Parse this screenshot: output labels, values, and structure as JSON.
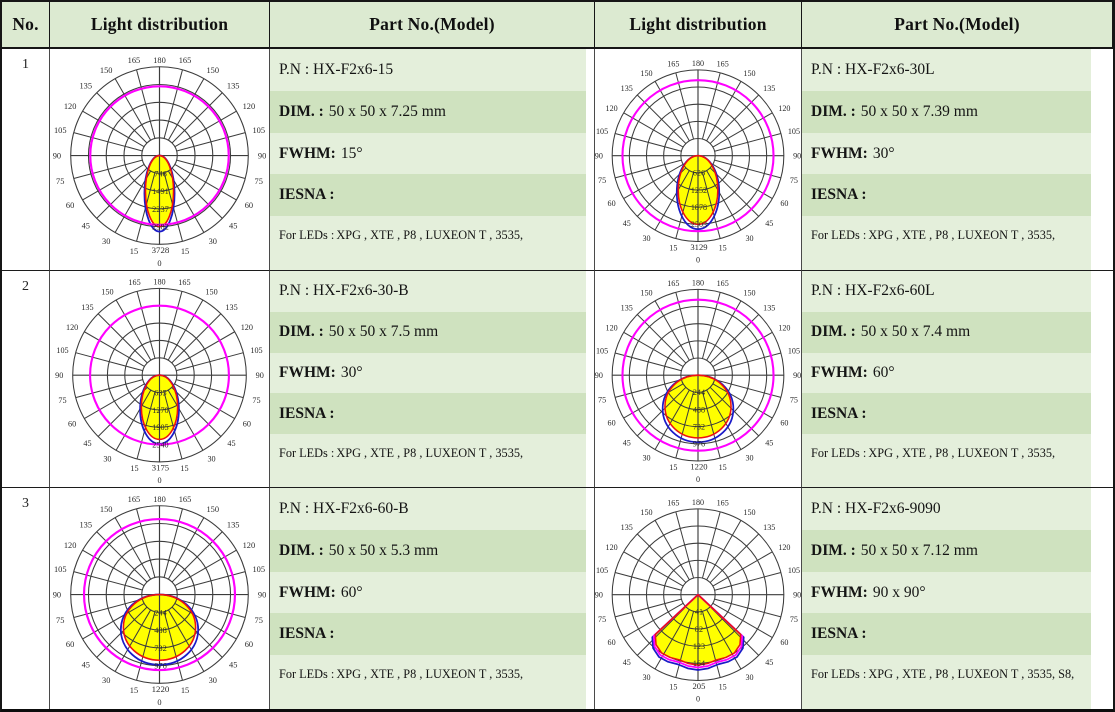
{
  "header": {
    "no": "No.",
    "light_distribution_1": "Light distribution",
    "part_no_1": "Part No.(Model)",
    "light_distribution_2": "Light distribution",
    "part_no_2": "Part No.(Model)"
  },
  "palette": {
    "header_bg": "#dcead1",
    "band_light": "#e4efdb",
    "band_dark": "#cfe2bf",
    "grid_line": "#3c3c3c",
    "beam_fill": "#ffff00",
    "outline_red": "#ee1111",
    "outline_blue": "#1a1ac8",
    "circle_magenta": "#ff00ff",
    "tick_text": "#2a2a2a"
  },
  "polar_axes": {
    "angle_ticks": [
      0,
      15,
      30,
      45,
      60,
      75,
      90,
      105,
      120,
      135,
      150,
      165,
      180
    ],
    "rings": 5
  },
  "rows": [
    {
      "no": "1",
      "charts": [
        {
          "radial_ticks": [
            "746",
            "1491",
            "2237",
            "2982"
          ],
          "max_label": "3728",
          "zero_label": "0",
          "lobe_shape": "ellipse",
          "lobe_length": 0.8,
          "lobe_half_width": 0.072,
          "magenta_r": 0.78
        },
        {
          "radial_ticks": [
            "626",
            "1252",
            "1878",
            "2503"
          ],
          "max_label": "3129",
          "zero_label": "0",
          "lobe_shape": "ellipse",
          "lobe_length": 0.8,
          "lobe_half_width": 0.105,
          "magenta_r": 0.88
        }
      ],
      "parts": [
        {
          "pn_line": "P.N : HX-F2x6-15",
          "dim_label": "DIM. :",
          "dim_value": "50 x 50 x 7.25 mm",
          "fwhm_label": "FWHM:",
          "fwhm_value": "15°",
          "iesna_label": "IESNA :",
          "leds_label": "For LEDs :",
          "leds_value": "XPG , XTE , P8  , LUXEON T , 3535,"
        },
        {
          "pn_line": "P.N : HX-F2x6-30L",
          "dim_label": "DIM. :",
          "dim_value": "50 x 50 x 7.39 mm",
          "fwhm_label": "FWHM:",
          "fwhm_value": "30°",
          "iesna_label": "IESNA :",
          "leds_label": "For LEDs :",
          "leds_value": "XPG , XTE , P8  , LUXEON T , 3535,"
        }
      ]
    },
    {
      "no": "2",
      "charts": [
        {
          "radial_ticks": [
            "635",
            "1270",
            "1905",
            "2540"
          ],
          "max_label": "3175",
          "zero_label": "0",
          "lobe_shape": "ellipse",
          "lobe_length": 0.74,
          "lobe_half_width": 0.095,
          "magenta_r": 0.8
        },
        {
          "radial_ticks": [
            "244",
            "488",
            "732",
            "976"
          ],
          "max_label": "1220",
          "zero_label": "0",
          "lobe_shape": "ellipse",
          "lobe_length": 0.73,
          "lobe_half_width": 0.175,
          "magenta_r": 0.88
        }
      ],
      "parts": [
        {
          "pn_line": "P.N : HX-F2x6-30-B",
          "dim_label": "DIM. :",
          "dim_value": "50 x 50 x 7.5 mm",
          "fwhm_label": "FWHM:",
          "fwhm_value": "30°",
          "iesna_label": "IESNA :",
          "leds_label": "For LEDs :",
          "leds_value": "XPG , XTE , P8  , LUXEON T , 3535,"
        },
        {
          "pn_line": "P.N : HX-F2x6-60L",
          "dim_label": "DIM. :",
          "dim_value": "50 x 50 x 7.4 mm",
          "fwhm_label": "FWHM:",
          "fwhm_value": "60°",
          "iesna_label": "IESNA :",
          "leds_label": "For LEDs :",
          "leds_value": "XPG , XTE , P8  , LUXEON T , 3535,"
        }
      ]
    },
    {
      "no": "3",
      "charts": [
        {
          "radial_ticks": [
            "244",
            "488",
            "732",
            "976"
          ],
          "max_label": "1220",
          "zero_label": "0",
          "lobe_shape": "ellipse",
          "lobe_length": 0.74,
          "lobe_half_width": 0.185,
          "magenta_r": 0.85
        },
        {
          "radial_ticks": [
            "41",
            "82",
            "123",
            "164"
          ],
          "max_label": "205",
          "zero_label": "0",
          "lobe_shape": "fan",
          "lobe_length": 0.82,
          "lobe_half_angle": 47,
          "magenta_r": null
        }
      ],
      "parts": [
        {
          "pn_line": "P.N : HX-F2x6-60-B",
          "dim_label": "DIM. :",
          "dim_value": "50 x 50 x 5.3 mm",
          "fwhm_label": "FWHM:",
          "fwhm_value": "60°",
          "iesna_label": "IESNA :",
          "leds_label": "For LEDs :",
          "leds_value": "XPG , XTE , P8  , LUXEON T , 3535,"
        },
        {
          "pn_line": "P.N : HX-F2x6-9090",
          "dim_label": "DIM. :",
          "dim_value": "50 x 50 x 7.12 mm",
          "fwhm_label": "FWHM:",
          "fwhm_value": "90 x 90°",
          "iesna_label": "IESNA :",
          "leds_label": "For LEDs :",
          "leds_value": "XPG , XTE , P8  , LUXEON T , 3535, S8,"
        }
      ]
    }
  ]
}
